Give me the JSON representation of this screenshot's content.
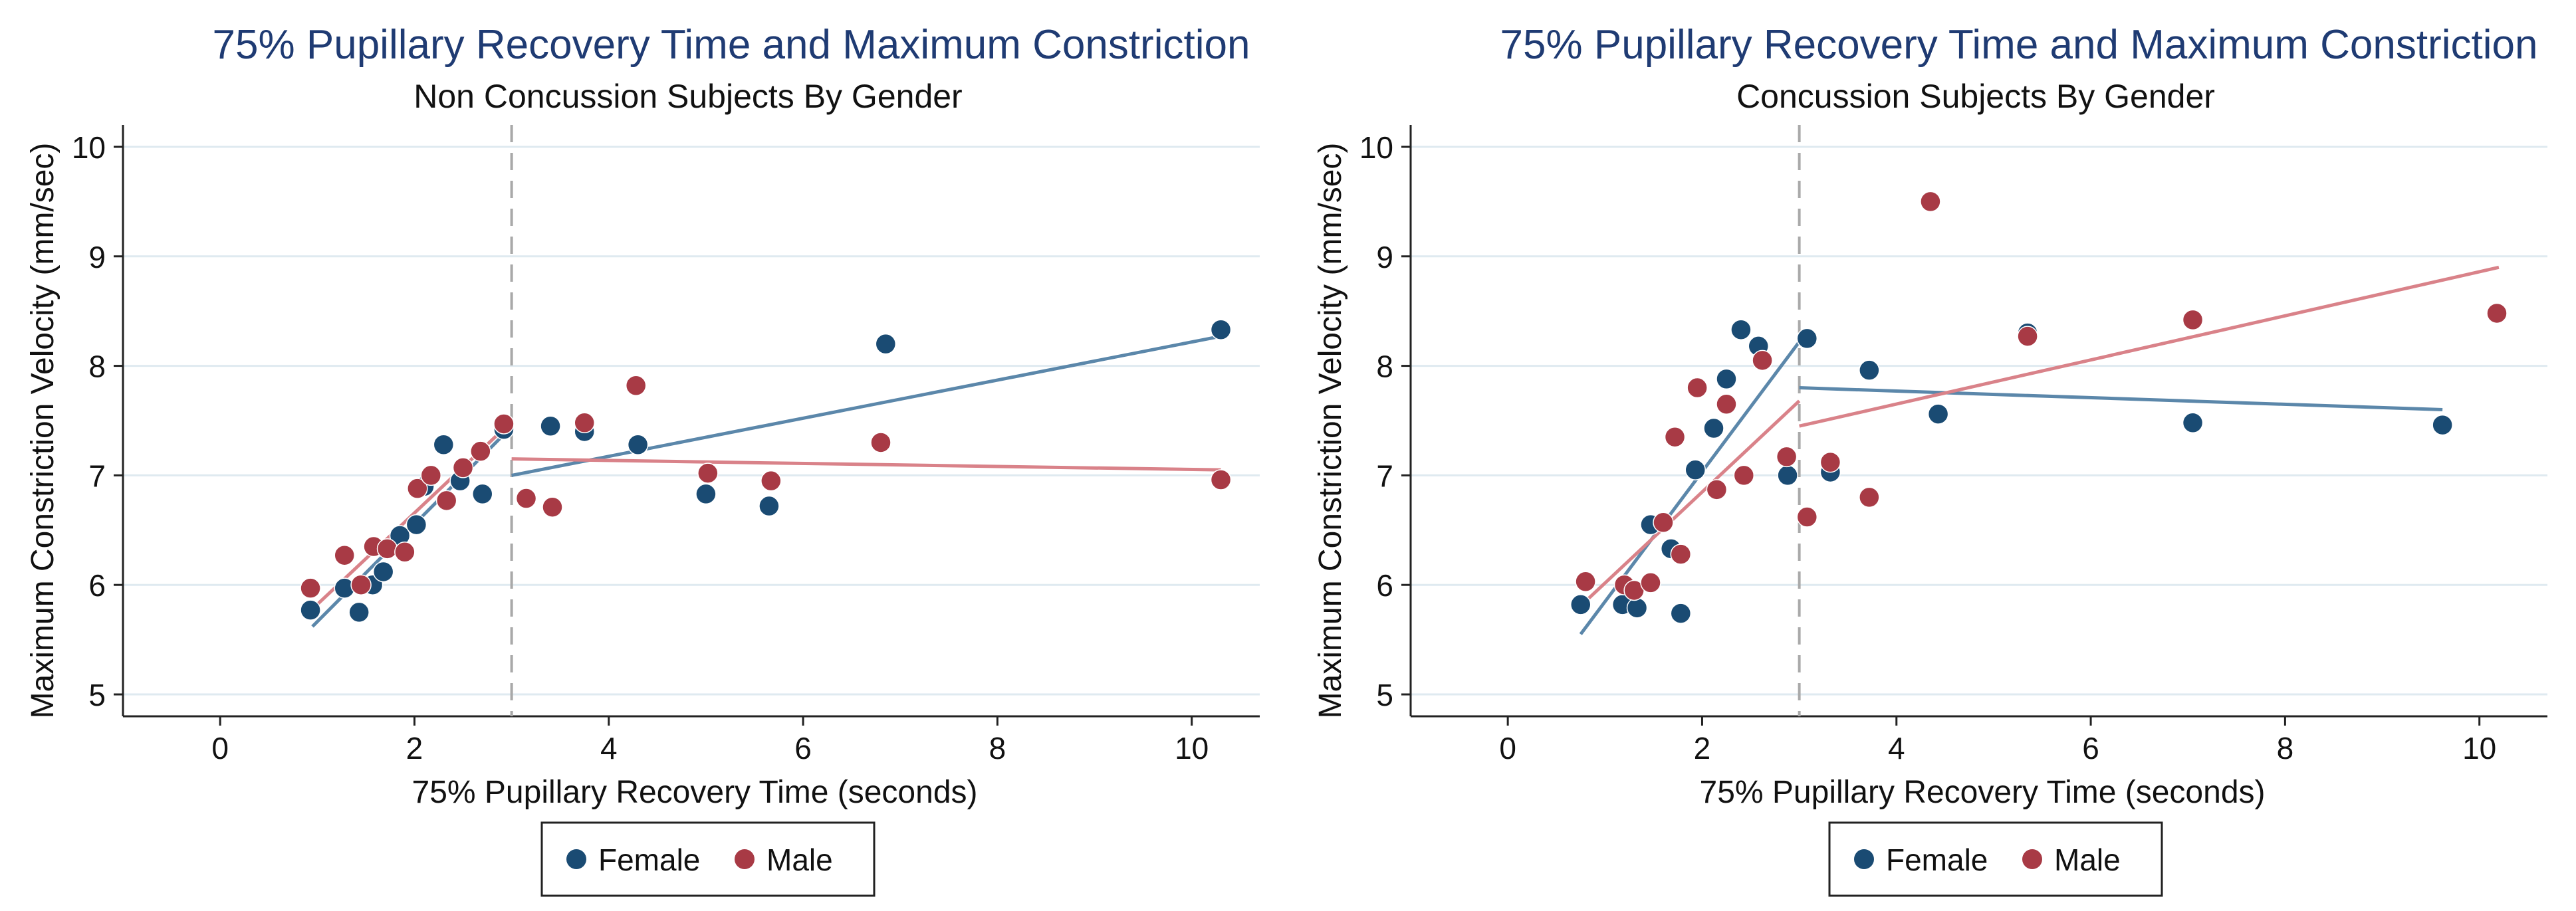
{
  "colors": {
    "female": "#1a4b73",
    "male": "#a83a45",
    "female_line": "#5b87aa",
    "male_line": "#d98289",
    "title": "#1f3b73",
    "grid": "#dfeaf0",
    "cutoff": "#a9a9a9"
  },
  "chart_data": [
    {
      "type": "scatter",
      "title": "75% Pupillary Recovery Time and Maximum Constriction",
      "subtitle": "Non Concussion Subjects By Gender",
      "xlabel": "75% Pupillary Recovery Time (seconds)",
      "ylabel": "Maximum Constriction Velocity (mm/sec)",
      "xlim": [
        -1,
        10.7
      ],
      "ylim": [
        4.8,
        10.2
      ],
      "xticks": [
        0,
        2,
        4,
        6,
        8,
        10
      ],
      "yticks": [
        5,
        6,
        7,
        8,
        9,
        10
      ],
      "grid": true,
      "cutoff_x": 3,
      "legend_position": "bottom-center",
      "series": [
        {
          "name": "Female",
          "points": [
            [
              0.93,
              5.77
            ],
            [
              1.28,
              5.97
            ],
            [
              1.43,
              5.75
            ],
            [
              1.57,
              6.0
            ],
            [
              1.68,
              6.12
            ],
            [
              1.85,
              6.45
            ],
            [
              2.02,
              6.55
            ],
            [
              2.1,
              6.9
            ],
            [
              2.3,
              7.28
            ],
            [
              2.47,
              6.95
            ],
            [
              2.7,
              6.83
            ],
            [
              2.92,
              7.42
            ],
            [
              3.4,
              7.45
            ],
            [
              3.75,
              7.4
            ],
            [
              4.3,
              7.28
            ],
            [
              5.0,
              6.83
            ],
            [
              5.65,
              6.72
            ],
            [
              6.85,
              8.2
            ],
            [
              10.3,
              8.33
            ]
          ]
        },
        {
          "name": "Male",
          "points": [
            [
              0.93,
              5.97
            ],
            [
              1.28,
              6.27
            ],
            [
              1.45,
              6.0
            ],
            [
              1.58,
              6.35
            ],
            [
              1.72,
              6.33
            ],
            [
              1.9,
              6.3
            ],
            [
              2.03,
              6.88
            ],
            [
              2.17,
              7.0
            ],
            [
              2.33,
              6.77
            ],
            [
              2.5,
              7.07
            ],
            [
              2.68,
              7.22
            ],
            [
              2.92,
              7.47
            ],
            [
              3.15,
              6.79
            ],
            [
              3.42,
              6.71
            ],
            [
              3.75,
              7.48
            ],
            [
              4.28,
              7.82
            ],
            [
              5.02,
              7.02
            ],
            [
              5.67,
              6.95
            ],
            [
              6.8,
              7.3
            ],
            [
              10.3,
              6.96
            ]
          ]
        }
      ],
      "fit_lines": [
        {
          "series": "Female",
          "x": [
            0.95,
            2.95
          ],
          "y": [
            5.62,
            7.4
          ]
        },
        {
          "series": "Female",
          "x": [
            3.0,
            10.3
          ],
          "y": [
            7.0,
            8.27
          ]
        },
        {
          "series": "Male",
          "x": [
            0.95,
            2.95
          ],
          "y": [
            5.78,
            7.45
          ]
        },
        {
          "series": "Male",
          "x": [
            3.0,
            10.3
          ],
          "y": [
            7.15,
            7.05
          ]
        }
      ]
    },
    {
      "type": "scatter",
      "title": "75% Pupillary Recovery Time and Maximum Constriction",
      "subtitle": "Concussion Subjects By Gender",
      "xlabel": "75% Pupillary Recovery Time (seconds)",
      "ylabel": "Maximum Constriction Velocity (mm/sec)",
      "xlim": [
        -1,
        10.7
      ],
      "ylim": [
        4.8,
        10.2
      ],
      "xticks": [
        0,
        2,
        4,
        6,
        8,
        10
      ],
      "yticks": [
        5,
        6,
        7,
        8,
        9,
        10
      ],
      "grid": true,
      "cutoff_x": 3,
      "legend_position": "bottom-center",
      "series": [
        {
          "name": "Female",
          "points": [
            [
              0.75,
              5.82
            ],
            [
              1.18,
              5.82
            ],
            [
              1.33,
              5.79
            ],
            [
              1.47,
              6.55
            ],
            [
              1.68,
              6.33
            ],
            [
              1.78,
              5.74
            ],
            [
              1.93,
              7.05
            ],
            [
              2.12,
              7.43
            ],
            [
              2.25,
              7.88
            ],
            [
              2.4,
              8.33
            ],
            [
              2.58,
              8.18
            ],
            [
              2.88,
              7.0
            ],
            [
              3.08,
              8.25
            ],
            [
              3.32,
              7.03
            ],
            [
              3.72,
              7.96
            ],
            [
              4.43,
              7.56
            ],
            [
              5.35,
              8.3
            ],
            [
              7.05,
              7.48
            ],
            [
              9.62,
              7.46
            ]
          ]
        },
        {
          "name": "Male",
          "points": [
            [
              0.8,
              6.03
            ],
            [
              1.2,
              6.0
            ],
            [
              1.3,
              5.95
            ],
            [
              1.47,
              6.02
            ],
            [
              1.6,
              6.57
            ],
            [
              1.72,
              7.35
            ],
            [
              1.78,
              6.28
            ],
            [
              1.95,
              7.8
            ],
            [
              2.15,
              6.87
            ],
            [
              2.25,
              7.65
            ],
            [
              2.43,
              7.0
            ],
            [
              2.62,
              8.05
            ],
            [
              2.87,
              7.17
            ],
            [
              3.08,
              6.62
            ],
            [
              3.32,
              7.12
            ],
            [
              3.72,
              6.8
            ],
            [
              4.35,
              9.5
            ],
            [
              5.35,
              8.27
            ],
            [
              7.05,
              8.42
            ],
            [
              10.18,
              8.48
            ]
          ]
        }
      ],
      "fit_lines": [
        {
          "series": "Female",
          "x": [
            0.75,
            3.0
          ],
          "y": [
            5.55,
            8.22
          ]
        },
        {
          "series": "Female",
          "x": [
            3.0,
            9.62
          ],
          "y": [
            7.8,
            7.6
          ]
        },
        {
          "series": "Male",
          "x": [
            0.8,
            3.0
          ],
          "y": [
            5.85,
            7.68
          ]
        },
        {
          "series": "Male",
          "x": [
            3.0,
            10.2
          ],
          "y": [
            7.45,
            8.9
          ]
        }
      ]
    }
  ]
}
